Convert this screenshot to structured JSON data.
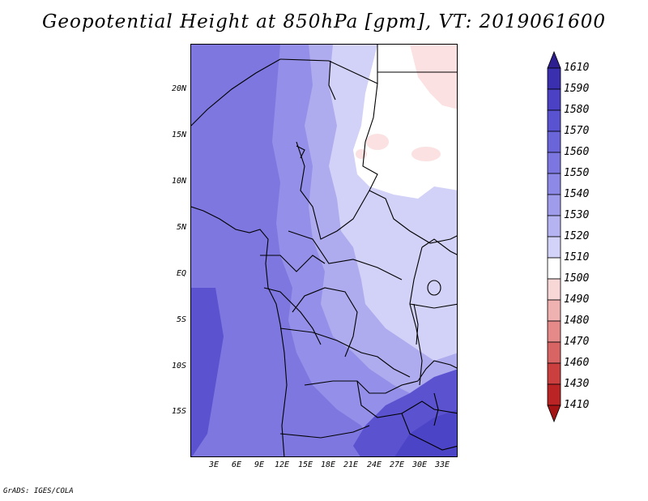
{
  "title": "Geopotential Height at 850hPa [gpm], VT: 2019061600",
  "credit": "GrADS: IGES/COLA",
  "lat_axis": {
    "ticks": [
      "20N",
      "15N",
      "10N",
      "5N",
      "EQ",
      "5S",
      "10S",
      "15S"
    ],
    "values": [
      20,
      15,
      10,
      5,
      0,
      -5,
      -10,
      -15
    ]
  },
  "lon_axis": {
    "ticks": [
      "3E",
      "6E",
      "9E",
      "12E",
      "15E",
      "18E",
      "21E",
      "24E",
      "27E",
      "30E",
      "33E"
    ],
    "values": [
      3,
      6,
      9,
      12,
      15,
      18,
      21,
      24,
      27,
      30,
      33
    ]
  },
  "colorbar": {
    "labels": [
      "1610",
      "1590",
      "1580",
      "1570",
      "1560",
      "1550",
      "1540",
      "1530",
      "1520",
      "1510",
      "1500",
      "1490",
      "1480",
      "1470",
      "1460",
      "1430",
      "1410"
    ],
    "colors": [
      "#2d1f8f",
      "#3a2fae",
      "#4a41c4",
      "#5a53d1",
      "#6b65da",
      "#7c77e0",
      "#8d89e6",
      "#9f9cec",
      "#b5b3f2",
      "#d3d2f8",
      "#ffffff",
      "#f8d7d7",
      "#f0b1b1",
      "#e58989",
      "#d96464",
      "#cc3f3f",
      "#bb2424",
      "#a41414"
    ]
  },
  "map_colors": {
    "deep": "#7e77e0",
    "mid": "#948fe8",
    "light": "#aeabee",
    "pale": "#d2d1f7",
    "white": "#ffffff",
    "pink": "#fbe1e1",
    "dark": "#5a52cf",
    "darker": "#4c44c6"
  }
}
